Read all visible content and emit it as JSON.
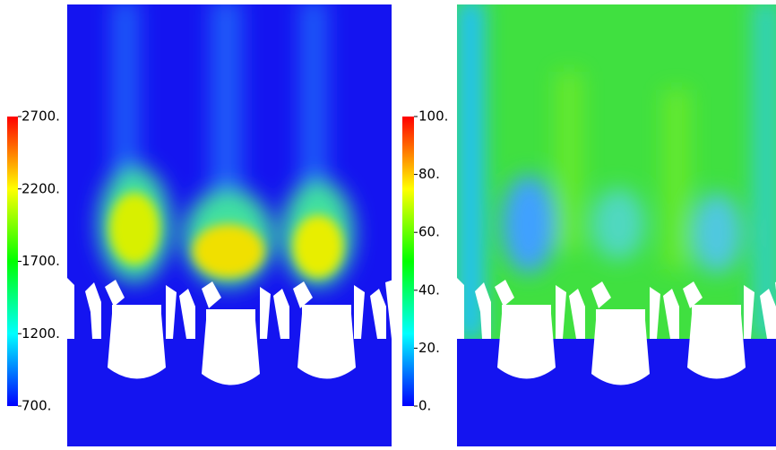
{
  "colorbars": [
    {
      "lim": [
        700,
        2700
      ],
      "ticks": [
        {
          "value": 2700,
          "label": "2700."
        },
        {
          "value": 2200,
          "label": "2200."
        },
        {
          "value": 1700,
          "label": "1700."
        },
        {
          "value": 1200,
          "label": "1200."
        },
        {
          "value": 700,
          "label": "700."
        }
      ]
    },
    {
      "lim": [
        0,
        100
      ],
      "ticks": [
        {
          "value": 100,
          "label": "100."
        },
        {
          "value": 80,
          "label": "80."
        },
        {
          "value": 60,
          "label": "60."
        },
        {
          "value": 40,
          "label": "40."
        },
        {
          "value": 20,
          "label": "20."
        },
        {
          "value": 0,
          "label": "0."
        }
      ]
    }
  ]
}
